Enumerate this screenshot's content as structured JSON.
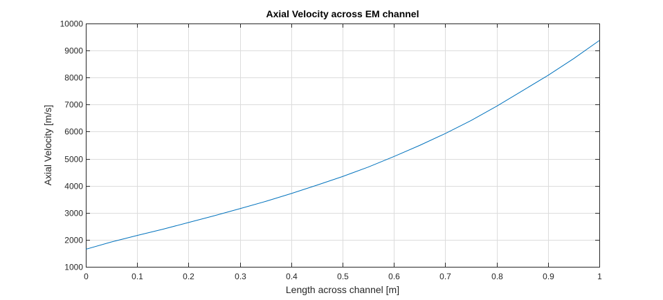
{
  "chart_data": {
    "type": "line",
    "title": "Axial Velocity across EM channel",
    "xlabel": "Length across channel [m]",
    "ylabel": "Axial Velocity [m/s]",
    "xlim": [
      0,
      1
    ],
    "ylim": [
      1000,
      10000
    ],
    "xticks": [
      0,
      0.1,
      0.2,
      0.3,
      0.4,
      0.5,
      0.6,
      0.7,
      0.8,
      0.9,
      1
    ],
    "xtick_labels": [
      "0",
      "0.1",
      "0.2",
      "0.3",
      "0.4",
      "0.5",
      "0.6",
      "0.7",
      "0.8",
      "0.9",
      "1"
    ],
    "yticks": [
      1000,
      2000,
      3000,
      4000,
      5000,
      6000,
      7000,
      8000,
      9000,
      10000
    ],
    "ytick_labels": [
      "1000",
      "2000",
      "3000",
      "4000",
      "5000",
      "6000",
      "7000",
      "8000",
      "9000",
      "10000"
    ],
    "grid": true,
    "colors": {
      "line": "#0072bd",
      "grid": "#dcdcdc",
      "axis": "#262626"
    },
    "series": [
      {
        "x": [
          0,
          0.05,
          0.1,
          0.15,
          0.2,
          0.25,
          0.3,
          0.35,
          0.4,
          0.45,
          0.5,
          0.55,
          0.6,
          0.65,
          0.7,
          0.75,
          0.8,
          0.85,
          0.9,
          0.95,
          1.0
        ],
        "values": [
          1650,
          1920,
          2160,
          2390,
          2640,
          2890,
          3150,
          3420,
          3710,
          4020,
          4340,
          4690,
          5080,
          5490,
          5930,
          6410,
          6940,
          7510,
          8080,
          8700,
          9370
        ]
      }
    ]
  }
}
